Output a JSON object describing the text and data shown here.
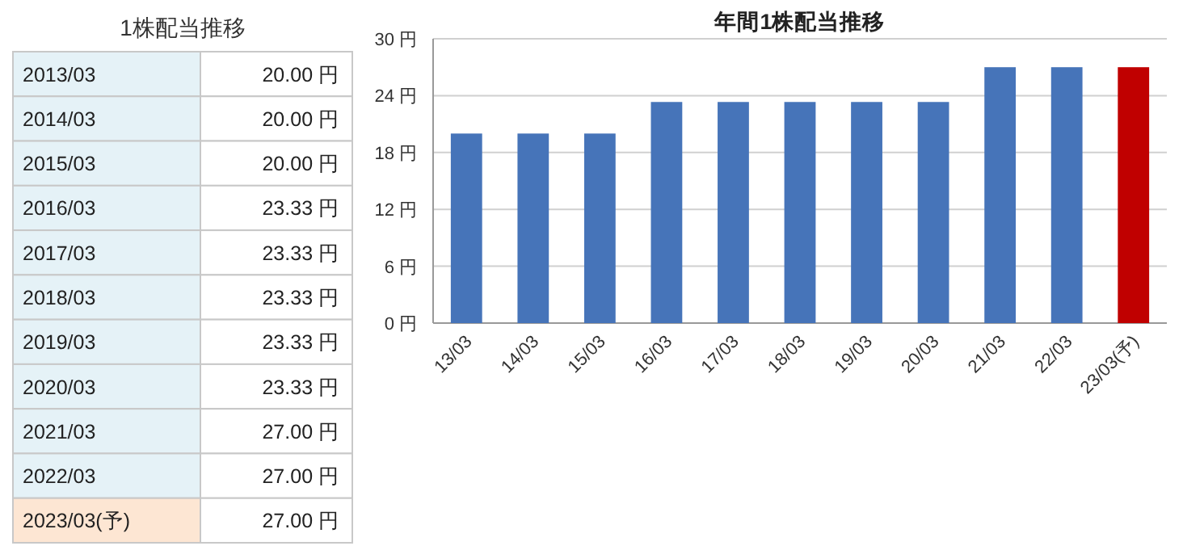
{
  "chart_data": [
    {
      "type": "other",
      "title": "1株配当推移",
      "categories": [
        "2013/03",
        "2014/03",
        "2015/03",
        "2016/03",
        "2017/03",
        "2018/03",
        "2019/03",
        "2020/03",
        "2021/03",
        "2022/03",
        "2023/03(予)"
      ],
      "values": [
        20.0,
        20.0,
        20.0,
        23.33,
        23.33,
        23.33,
        23.33,
        23.33,
        27.0,
        27.0,
        27.0
      ],
      "value_labels": [
        "20.00 円",
        "20.00 円",
        "20.00 円",
        "23.33 円",
        "23.33 円",
        "23.33 円",
        "23.33 円",
        "23.33 円",
        "27.00 円",
        "27.00 円",
        "27.00 円"
      ]
    },
    {
      "type": "bar",
      "title": "年間1株配当推移",
      "categories": [
        "13/03",
        "14/03",
        "15/03",
        "16/03",
        "17/03",
        "18/03",
        "19/03",
        "20/03",
        "21/03",
        "22/03",
        "23/03(予)"
      ],
      "values": [
        20.0,
        20.0,
        20.0,
        23.33,
        23.33,
        23.33,
        23.33,
        23.33,
        27.0,
        27.0,
        27.0
      ],
      "colors": [
        "#4674b9",
        "#4674b9",
        "#4674b9",
        "#4674b9",
        "#4674b9",
        "#4674b9",
        "#4674b9",
        "#4674b9",
        "#4674b9",
        "#4674b9",
        "#c00000"
      ],
      "ylim": [
        0,
        30
      ],
      "yticks": [
        {
          "value": 0,
          "label": "0 円"
        },
        {
          "value": 6,
          "label": "6 円"
        },
        {
          "value": 12,
          "label": "12 円"
        },
        {
          "value": 18,
          "label": "18 円"
        },
        {
          "value": 24,
          "label": "24 円"
        },
        {
          "value": 30,
          "label": "30 円"
        }
      ],
      "grid": "y"
    }
  ]
}
